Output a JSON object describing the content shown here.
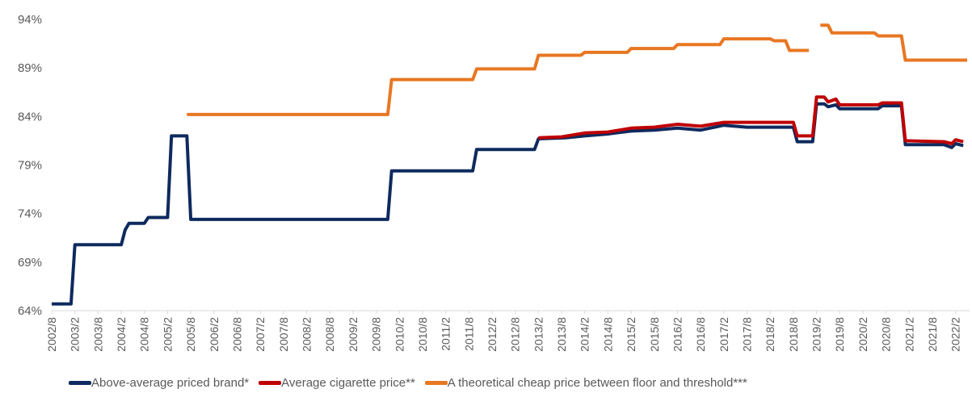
{
  "chart_data": {
    "type": "line",
    "title": "",
    "xlabel": "",
    "ylabel": "",
    "ylim": [
      64,
      94
    ],
    "y_ticks": [
      "64%",
      "69%",
      "74%",
      "79%",
      "84%",
      "89%",
      "94%"
    ],
    "y_tick_values": [
      64,
      69,
      74,
      79,
      84,
      89,
      94
    ],
    "x_tick_labels": [
      "2002/8",
      "2003/2",
      "2003/8",
      "2004/2",
      "2004/8",
      "2005/2",
      "2005/8",
      "2006/2",
      "2006/8",
      "2007/2",
      "2007/8",
      "2008/2",
      "2008/8",
      "2009/2",
      "2009/8",
      "2010/2",
      "2010/8",
      "2011/2",
      "2011/8",
      "2012/2",
      "2012/8",
      "2013/2",
      "2013/8",
      "2014/2",
      "2014/8",
      "2015/2",
      "2015/8",
      "2016/2",
      "2016/8",
      "2017/2",
      "2017/8",
      "2018/2",
      "2018/8",
      "2019/2",
      "2019/8",
      "2020/2",
      "2020/8",
      "2021/2",
      "2021/8",
      "2022/2"
    ],
    "x_range": [
      "2002/8",
      "2022/5"
    ],
    "grid": false,
    "legend_position": "bottom",
    "series": [
      {
        "name": "Above-average priced brand*",
        "color": "#0e2a5e",
        "points": [
          [
            "2002/8",
            64.7
          ],
          [
            "2003/1",
            64.7
          ],
          [
            "2003/2",
            70.8
          ],
          [
            "2004/2",
            70.8
          ],
          [
            "2004/3",
            72.3
          ],
          [
            "2004/4",
            73.0
          ],
          [
            "2004/8",
            73.0
          ],
          [
            "2004/9",
            73.6
          ],
          [
            "2005/2",
            73.6
          ],
          [
            "2005/3",
            82.0
          ],
          [
            "2005/7",
            82.0
          ],
          [
            "2005/8",
            73.4
          ],
          [
            "2009/11",
            73.4
          ],
          [
            "2009/12",
            78.4
          ],
          [
            "2011/9",
            78.4
          ],
          [
            "2011/10",
            80.6
          ],
          [
            "2013/1",
            80.6
          ],
          [
            "2013/2",
            81.7
          ],
          [
            "2013/9",
            81.8
          ],
          [
            "2014/2",
            82.0
          ],
          [
            "2014/8",
            82.2
          ],
          [
            "2015/2",
            82.5
          ],
          [
            "2015/8",
            82.6
          ],
          [
            "2016/2",
            82.8
          ],
          [
            "2016/8",
            82.6
          ],
          [
            "2017/2",
            83.1
          ],
          [
            "2017/8",
            82.9
          ],
          [
            "2018/8",
            82.9
          ],
          [
            "2018/9",
            81.4
          ],
          [
            "2019/1",
            81.4
          ],
          [
            "2019/2",
            85.3
          ],
          [
            "2019/4",
            85.3
          ],
          [
            "2019/5",
            85.0
          ],
          [
            "2019/7",
            85.2
          ],
          [
            "2019/8",
            84.8
          ],
          [
            "2020/6",
            84.8
          ],
          [
            "2020/7",
            85.1
          ],
          [
            "2020/12",
            85.1
          ],
          [
            "2021/1",
            81.1
          ],
          [
            "2021/11",
            81.1
          ],
          [
            "2022/1",
            80.8
          ],
          [
            "2022/2",
            81.2
          ],
          [
            "2022/4",
            81.0
          ]
        ]
      },
      {
        "name": "Average cigarette price**",
        "color": "#c00000",
        "points": [
          [
            "2013/2",
            81.8
          ],
          [
            "2013/8",
            81.9
          ],
          [
            "2014/2",
            82.3
          ],
          [
            "2014/8",
            82.4
          ],
          [
            "2015/2",
            82.8
          ],
          [
            "2015/8",
            82.9
          ],
          [
            "2016/2",
            83.2
          ],
          [
            "2016/8",
            83.0
          ],
          [
            "2017/2",
            83.4
          ],
          [
            "2018/8",
            83.4
          ],
          [
            "2018/9",
            82.0
          ],
          [
            "2019/1",
            82.0
          ],
          [
            "2019/2",
            86.0
          ],
          [
            "2019/4",
            86.0
          ],
          [
            "2019/5",
            85.5
          ],
          [
            "2019/7",
            85.8
          ],
          [
            "2019/8",
            85.2
          ],
          [
            "2020/6",
            85.2
          ],
          [
            "2020/7",
            85.4
          ],
          [
            "2020/12",
            85.4
          ],
          [
            "2021/1",
            81.5
          ],
          [
            "2021/11",
            81.4
          ],
          [
            "2022/1",
            81.2
          ],
          [
            "2022/2",
            81.6
          ],
          [
            "2022/4",
            81.4
          ]
        ]
      },
      {
        "name": "A theoretical cheap price between floor and threshold***",
        "color": "#e87722",
        "segments": [
          [
            [
              "2005/7",
              84.2
            ],
            [
              "2009/11",
              84.2
            ],
            [
              "2009/12",
              87.8
            ],
            [
              "2011/9",
              87.8
            ],
            [
              "2011/10",
              88.9
            ],
            [
              "2013/1",
              88.9
            ],
            [
              "2013/2",
              90.3
            ],
            [
              "2014/1",
              90.3
            ],
            [
              "2014/2",
              90.6
            ],
            [
              "2015/1",
              90.6
            ],
            [
              "2015/2",
              91.0
            ],
            [
              "2016/1",
              91.0
            ],
            [
              "2016/2",
              91.4
            ],
            [
              "2017/1",
              91.4
            ],
            [
              "2017/2",
              92.0
            ],
            [
              "2018/2",
              92.0
            ],
            [
              "2018/3",
              91.8
            ],
            [
              "2018/6",
              91.8
            ],
            [
              "2018/7",
              90.8
            ],
            [
              "2018/12",
              90.8
            ]
          ],
          [
            [
              "2019/3",
              93.4
            ],
            [
              "2019/5",
              93.4
            ],
            [
              "2019/6",
              92.6
            ],
            [
              "2020/5",
              92.6
            ],
            [
              "2020/6",
              92.3
            ],
            [
              "2020/12",
              92.3
            ],
            [
              "2021/1",
              89.8
            ],
            [
              "2022/5",
              89.8
            ]
          ]
        ]
      }
    ]
  }
}
